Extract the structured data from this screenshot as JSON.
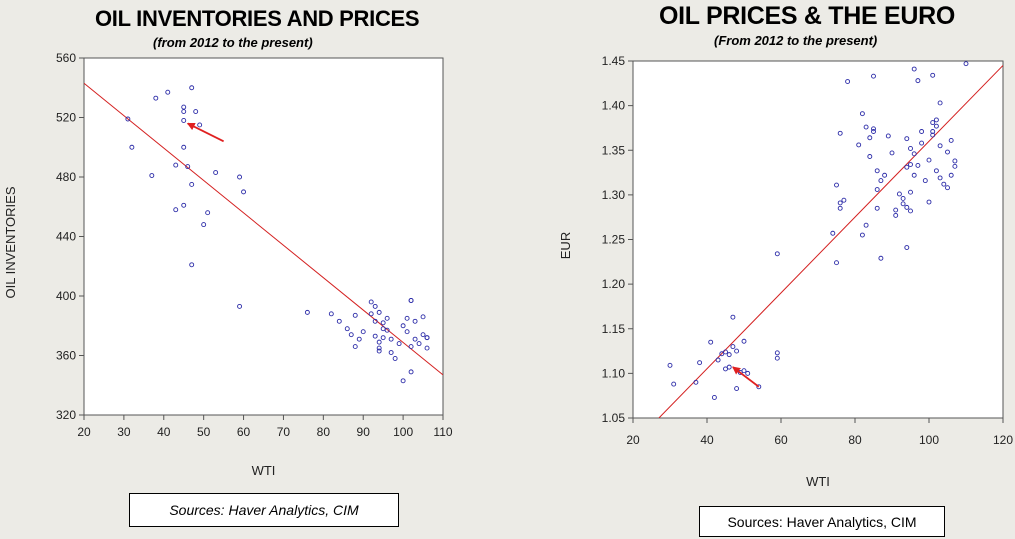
{
  "chart_data": [
    {
      "type": "scatter",
      "title": "OIL INVENTORIES AND PRICES",
      "subtitle": "(from 2012 to the present)",
      "xlabel": "WTI",
      "ylabel": "OIL INVENTORIES",
      "xlim": [
        20,
        110
      ],
      "ylim": [
        320,
        560
      ],
      "xticks": [
        "20",
        "30",
        "40",
        "50",
        "60",
        "70",
        "80",
        "90",
        "100",
        "110"
      ],
      "yticks": [
        "320",
        "360",
        "400",
        "440",
        "480",
        "520",
        "560"
      ],
      "grid": false,
      "legend": "none",
      "point_color": "#2c2ca8",
      "line_color": "#d42020",
      "arrow_color": "#e02020",
      "trend_line": [
        [
          20,
          543
        ],
        [
          110,
          347
        ]
      ],
      "arrow": {
        "from": [
          55,
          504
        ],
        "to": [
          46,
          516
        ]
      },
      "points": [
        [
          31,
          519
        ],
        [
          32,
          500
        ],
        [
          37,
          481
        ],
        [
          38,
          533
        ],
        [
          41,
          537
        ],
        [
          43,
          488
        ],
        [
          43,
          458
        ],
        [
          45,
          527
        ],
        [
          45,
          524
        ],
        [
          45,
          500
        ],
        [
          45,
          518
        ],
        [
          45,
          461
        ],
        [
          46,
          487
        ],
        [
          47,
          540
        ],
        [
          47,
          475
        ],
        [
          47,
          421
        ],
        [
          48,
          524
        ],
        [
          49,
          515
        ],
        [
          50,
          448
        ],
        [
          51,
          456
        ],
        [
          53,
          483
        ],
        [
          59,
          480
        ],
        [
          59,
          393
        ],
        [
          60,
          470
        ],
        [
          76,
          389
        ],
        [
          82,
          388
        ],
        [
          84,
          383
        ],
        [
          86,
          378
        ],
        [
          87,
          374
        ],
        [
          88,
          366
        ],
        [
          88,
          387
        ],
        [
          89,
          371
        ],
        [
          90,
          376
        ],
        [
          92,
          396
        ],
        [
          92,
          388
        ],
        [
          93,
          393
        ],
        [
          93,
          383
        ],
        [
          93,
          373
        ],
        [
          94,
          369
        ],
        [
          94,
          363
        ],
        [
          94,
          365
        ],
        [
          94,
          389
        ],
        [
          95,
          382
        ],
        [
          95,
          378
        ],
        [
          95,
          372
        ],
        [
          96,
          385
        ],
        [
          96,
          377
        ],
        [
          97,
          371
        ],
        [
          97,
          362
        ],
        [
          98,
          358
        ],
        [
          99,
          368
        ],
        [
          100,
          380
        ],
        [
          100,
          343
        ],
        [
          101,
          385
        ],
        [
          101,
          376
        ],
        [
          102,
          397
        ],
        [
          102,
          397
        ],
        [
          102,
          366
        ],
        [
          102,
          349
        ],
        [
          103,
          383
        ],
        [
          103,
          371
        ],
        [
          104,
          368
        ],
        [
          105,
          386
        ],
        [
          105,
          374
        ],
        [
          106,
          372
        ],
        [
          106,
          365
        ],
        [
          106,
          372
        ]
      ]
    },
    {
      "type": "scatter",
      "title": "OIL PRICES & THE EURO",
      "subtitle": "(From 2012 to the present)",
      "xlabel": "WTI",
      "ylabel": "EUR",
      "xlim": [
        20,
        120
      ],
      "ylim": [
        1.05,
        1.45
      ],
      "xticks": [
        "20",
        "40",
        "60",
        "80",
        "100",
        "120"
      ],
      "yticks": [
        "1.05",
        "1.10",
        "1.15",
        "1.20",
        "1.25",
        "1.30",
        "1.35",
        "1.40",
        "1.45"
      ],
      "grid": false,
      "legend": "none",
      "point_color": "#2c2ca8",
      "line_color": "#d42020",
      "arrow_color": "#e02020",
      "trend_line": [
        [
          27,
          1.05
        ],
        [
          120,
          1.445
        ]
      ],
      "arrow": {
        "from": [
          54,
          1.085
        ],
        "to": [
          47,
          1.107
        ]
      },
      "points": [
        [
          30,
          1.109
        ],
        [
          31,
          1.088
        ],
        [
          37,
          1.09
        ],
        [
          38,
          1.112
        ],
        [
          41,
          1.135
        ],
        [
          42,
          1.073
        ],
        [
          43,
          1.115
        ],
        [
          44,
          1.122
        ],
        [
          45,
          1.105
        ],
        [
          45,
          1.124
        ],
        [
          46,
          1.107
        ],
        [
          46,
          1.121
        ],
        [
          47,
          1.13
        ],
        [
          47,
          1.163
        ],
        [
          48,
          1.083
        ],
        [
          48,
          1.125
        ],
        [
          49,
          1.101
        ],
        [
          50,
          1.136
        ],
        [
          50,
          1.103
        ],
        [
          51,
          1.1
        ],
        [
          54,
          1.085
        ],
        [
          59,
          1.234
        ],
        [
          59,
          1.117
        ],
        [
          59,
          1.123
        ],
        [
          74,
          1.257
        ],
        [
          75,
          1.224
        ],
        [
          75,
          1.311
        ],
        [
          76,
          1.369
        ],
        [
          76,
          1.285
        ],
        [
          76,
          1.291
        ],
        [
          77,
          1.294
        ],
        [
          78,
          1.427
        ],
        [
          81,
          1.356
        ],
        [
          82,
          1.391
        ],
        [
          82,
          1.255
        ],
        [
          83,
          1.376
        ],
        [
          83,
          1.266
        ],
        [
          84,
          1.343
        ],
        [
          84,
          1.364
        ],
        [
          85,
          1.371
        ],
        [
          85,
          1.374
        ],
        [
          85,
          1.433
        ],
        [
          86,
          1.285
        ],
        [
          86,
          1.306
        ],
        [
          86,
          1.327
        ],
        [
          87,
          1.229
        ],
        [
          87,
          1.316
        ],
        [
          88,
          1.322
        ],
        [
          89,
          1.366
        ],
        [
          90,
          1.347
        ],
        [
          91,
          1.283
        ],
        [
          91,
          1.277
        ],
        [
          92,
          1.301
        ],
        [
          93,
          1.296
        ],
        [
          93,
          1.29
        ],
        [
          94,
          1.241
        ],
        [
          94,
          1.286
        ],
        [
          94,
          1.331
        ],
        [
          94,
          1.363
        ],
        [
          95,
          1.352
        ],
        [
          95,
          1.303
        ],
        [
          95,
          1.334
        ],
        [
          95,
          1.282
        ],
        [
          96,
          1.346
        ],
        [
          96,
          1.322
        ],
        [
          96,
          1.441
        ],
        [
          97,
          1.333
        ],
        [
          97,
          1.428
        ],
        [
          98,
          1.371
        ],
        [
          98,
          1.358
        ],
        [
          99,
          1.316
        ],
        [
          100,
          1.292
        ],
        [
          100,
          1.339
        ],
        [
          101,
          1.381
        ],
        [
          101,
          1.434
        ],
        [
          101,
          1.367
        ],
        [
          101,
          1.371
        ],
        [
          102,
          1.384
        ],
        [
          102,
          1.327
        ],
        [
          102,
          1.377
        ],
        [
          103,
          1.403
        ],
        [
          103,
          1.319
        ],
        [
          103,
          1.355
        ],
        [
          104,
          1.312
        ],
        [
          105,
          1.348
        ],
        [
          105,
          1.308
        ],
        [
          106,
          1.361
        ],
        [
          106,
          1.322
        ],
        [
          107,
          1.332
        ],
        [
          107,
          1.338
        ],
        [
          110,
          1.447
        ]
      ]
    }
  ],
  "sources": {
    "left": "Sources:  Haver Analytics, CIM",
    "right": "Sources:  Haver Analytics, CIM"
  }
}
